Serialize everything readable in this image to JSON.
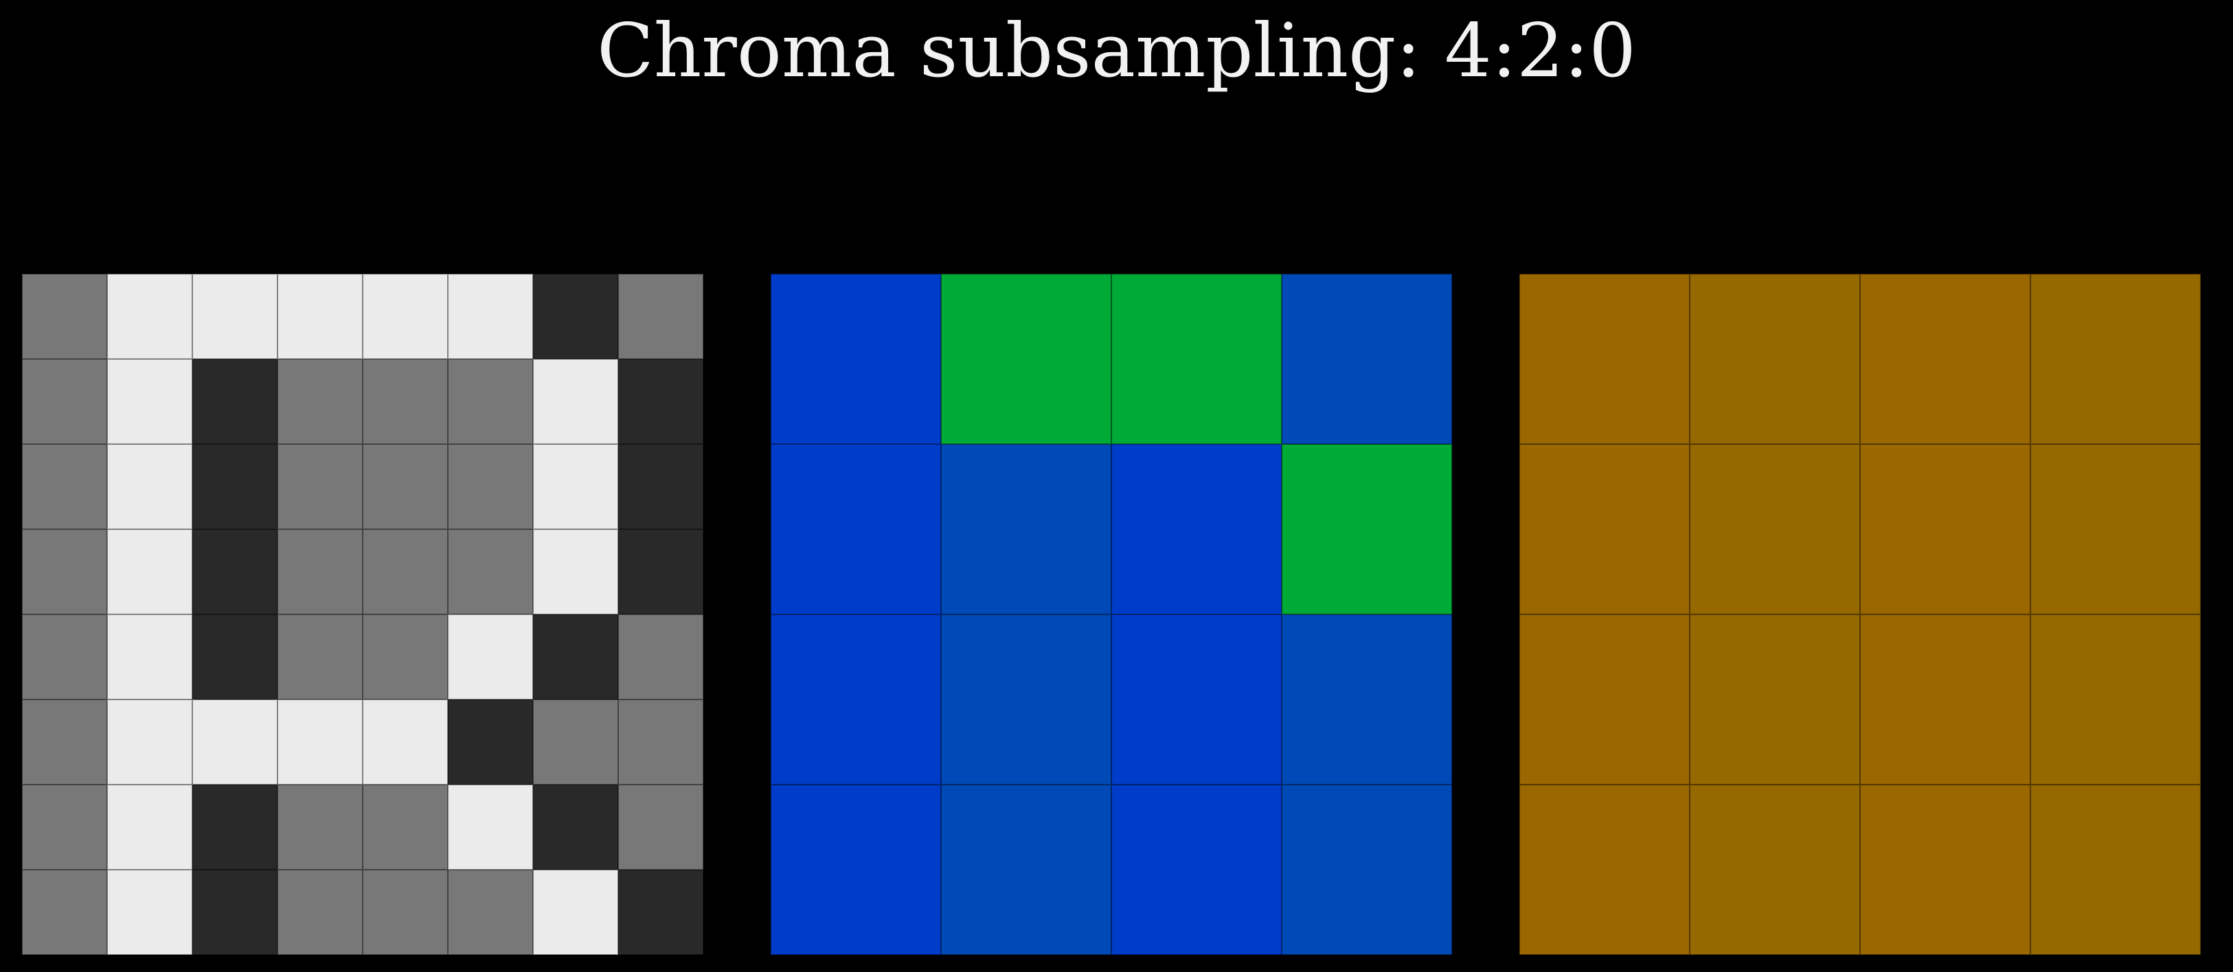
{
  "title": "Chroma subsampling: 4:2:0",
  "palette": {
    "luma": {
      "L": "#787878",
      "W": "#ebebeb",
      "D": "#292929"
    },
    "cb": {
      "B1": "#003cca",
      "B2": "#004ab7",
      "G": "#00aa36"
    },
    "cr": {
      "O1": "#9a6700",
      "O2": "#956800"
    }
  },
  "grids": [
    {
      "id": "luma",
      "name": "luma-grid",
      "palette": "luma",
      "rows": [
        [
          "L",
          "W",
          "W",
          "W",
          "W",
          "W",
          "D",
          "L"
        ],
        [
          "L",
          "W",
          "D",
          "L",
          "L",
          "L",
          "W",
          "D"
        ],
        [
          "L",
          "W",
          "D",
          "L",
          "L",
          "L",
          "W",
          "D"
        ],
        [
          "L",
          "W",
          "D",
          "L",
          "L",
          "L",
          "W",
          "D"
        ],
        [
          "L",
          "W",
          "D",
          "L",
          "L",
          "W",
          "D",
          "L"
        ],
        [
          "L",
          "W",
          "W",
          "W",
          "W",
          "D",
          "L",
          "L"
        ],
        [
          "L",
          "W",
          "D",
          "L",
          "L",
          "W",
          "D",
          "L"
        ],
        [
          "L",
          "W",
          "D",
          "L",
          "L",
          "L",
          "W",
          "D"
        ]
      ]
    },
    {
      "id": "cb",
      "name": "chroma-blue-grid",
      "palette": "cb",
      "rows": [
        [
          "B1",
          "G",
          "G",
          "B2"
        ],
        [
          "B1",
          "B2",
          "B1",
          "G"
        ],
        [
          "B1",
          "B2",
          "B1",
          "B2"
        ],
        [
          "B1",
          "B2",
          "B1",
          "B2"
        ]
      ]
    },
    {
      "id": "cr",
      "name": "chroma-red-grid",
      "palette": "cr",
      "rows": [
        [
          "O1",
          "O2",
          "O1",
          "O2"
        ],
        [
          "O1",
          "O2",
          "O1",
          "O2"
        ],
        [
          "O1",
          "O2",
          "O1",
          "O2"
        ],
        [
          "O1",
          "O2",
          "O1",
          "O2"
        ]
      ]
    }
  ]
}
